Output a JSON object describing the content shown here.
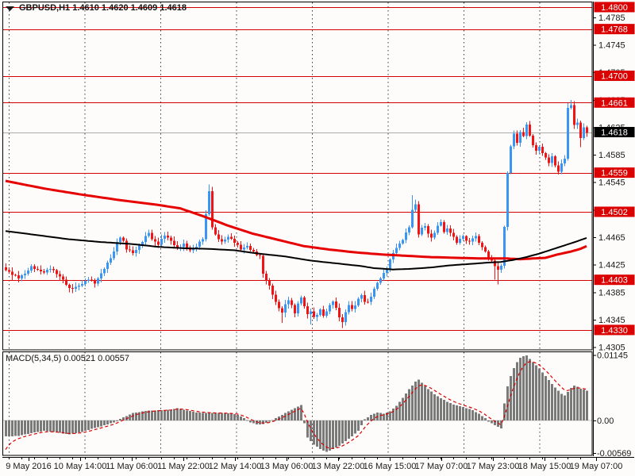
{
  "window": {
    "title": "GBPUSD,H1 1.4610 1.4620 1.4609 1.4618",
    "symbol": "GBPUSD",
    "period": "H1",
    "quote_open": "1.4610",
    "quote_high": "1.4620",
    "quote_low": "1.4609",
    "quote_close": "1.4618"
  },
  "colors": {
    "background": "#FEFCFA",
    "bull_candle": "#3996F5",
    "bear_candle": "#F21414",
    "ma_slow_red": "#E60000",
    "ma_fast_black": "#000000",
    "level_line": "#D40000",
    "level_badge_bg": "#DC0000",
    "level_badge_text": "#FFFFFF",
    "bid_line": "#ABABAB",
    "bid_badge_bg": "#000000",
    "bid_badge_text": "#FFFFFF",
    "macd_bar": "#7A7A7A",
    "macd_signal": "#DC0000",
    "macd_zero_line": "#C8C8C8",
    "grid": "#3A3A3A",
    "frame": "#000000",
    "axis_text": "#1A1A1A"
  },
  "chart_data": {
    "type": "candlestick+macd",
    "symbol": "GBPUSD",
    "timeframe": "H1",
    "main": {
      "ylim": [
        1.4301,
        1.4808
      ],
      "yticks": [
        "1.4785",
        "1.4745",
        "1.4705",
        "1.4665",
        "1.4625",
        "1.4585",
        "1.4545",
        "1.4505",
        "1.4465",
        "1.4425",
        "1.4385",
        "1.4345",
        "1.4305"
      ],
      "levels": [
        "1.4800",
        "1.4768",
        "1.4700",
        "1.4661",
        "1.4559",
        "1.4502",
        "1.4403",
        "1.4330"
      ],
      "bid": "1.4618",
      "xlabels": [
        "9 May 2016",
        "10 May 14:00",
        "11 May 06:00",
        "11 May 22:00",
        "12 May 14:00",
        "13 May 06:00",
        "13 May 22:00",
        "16 May 15:00",
        "17 May 07:00",
        "17 May 23:00",
        "18 May 15:00",
        "19 May 07:00"
      ],
      "candles": {
        "count": 184,
        "close_keypoints": [
          [
            0,
            1.4417
          ],
          [
            2,
            1.4411
          ],
          [
            4,
            1.4406
          ],
          [
            6,
            1.4412
          ],
          [
            8,
            1.4422
          ],
          [
            10,
            1.4417
          ],
          [
            12,
            1.4414
          ],
          [
            14,
            1.442
          ],
          [
            16,
            1.4412
          ],
          [
            18,
            1.4403
          ],
          [
            20,
            1.439
          ],
          [
            22,
            1.4392
          ],
          [
            24,
            1.4397
          ],
          [
            26,
            1.4404
          ],
          [
            28,
            1.4398
          ],
          [
            30,
            1.4412
          ],
          [
            32,
            1.4427
          ],
          [
            34,
            1.4444
          ],
          [
            35,
            1.4458
          ],
          [
            36,
            1.4465
          ],
          [
            37,
            1.4459
          ],
          [
            38,
            1.4448
          ],
          [
            40,
            1.4442
          ],
          [
            42,
            1.4452
          ],
          [
            44,
            1.4466
          ],
          [
            45,
            1.4472
          ],
          [
            46,
            1.4462
          ],
          [
            48,
            1.4455
          ],
          [
            50,
            1.4468
          ],
          [
            52,
            1.446
          ],
          [
            54,
            1.4448
          ],
          [
            56,
            1.4455
          ],
          [
            58,
            1.4446
          ],
          [
            60,
            1.4452
          ],
          [
            62,
            1.4463
          ],
          [
            63,
            1.4498
          ],
          [
            64,
            1.4532
          ],
          [
            65,
            1.448
          ],
          [
            66,
            1.4468
          ],
          [
            68,
            1.4458
          ],
          [
            70,
            1.4466
          ],
          [
            72,
            1.4458
          ],
          [
            74,
            1.4448
          ],
          [
            76,
            1.4452
          ],
          [
            78,
            1.4443
          ],
          [
            80,
            1.4437
          ],
          [
            81,
            1.4412
          ],
          [
            82,
            1.4402
          ],
          [
            83,
            1.4394
          ],
          [
            84,
            1.4382
          ],
          [
            85,
            1.437
          ],
          [
            86,
            1.4362
          ],
          [
            87,
            1.4355
          ],
          [
            88,
            1.4367
          ],
          [
            89,
            1.4374
          ],
          [
            90,
            1.4365
          ],
          [
            91,
            1.4355
          ],
          [
            92,
            1.4368
          ],
          [
            93,
            1.4377
          ],
          [
            94,
            1.4365
          ],
          [
            95,
            1.4352
          ],
          [
            96,
            1.4358
          ],
          [
            97,
            1.4348
          ],
          [
            98,
            1.4352
          ],
          [
            99,
            1.436
          ],
          [
            100,
            1.435
          ],
          [
            101,
            1.4358
          ],
          [
            102,
            1.4365
          ],
          [
            103,
            1.4372
          ],
          [
            104,
            1.4362
          ],
          [
            105,
            1.4348
          ],
          [
            106,
            1.4342
          ],
          [
            107,
            1.4355
          ],
          [
            108,
            1.4367
          ],
          [
            109,
            1.436
          ],
          [
            110,
            1.4366
          ],
          [
            111,
            1.4376
          ],
          [
            112,
            1.438
          ],
          [
            113,
            1.4372
          ],
          [
            114,
            1.437
          ],
          [
            115,
            1.4379
          ],
          [
            116,
            1.439
          ],
          [
            117,
            1.4398
          ],
          [
            118,
            1.4406
          ],
          [
            119,
            1.4412
          ],
          [
            120,
            1.442
          ],
          [
            121,
            1.4432
          ],
          [
            122,
            1.4442
          ],
          [
            123,
            1.445
          ],
          [
            124,
            1.4455
          ],
          [
            125,
            1.4462
          ],
          [
            126,
            1.4471
          ],
          [
            127,
            1.448
          ],
          [
            128,
            1.4505
          ],
          [
            129,
            1.4512
          ],
          [
            130,
            1.447
          ],
          [
            131,
            1.4478
          ],
          [
            132,
            1.4482
          ],
          [
            133,
            1.447
          ],
          [
            134,
            1.4464
          ],
          [
            135,
            1.4472
          ],
          [
            136,
            1.4481
          ],
          [
            137,
            1.4488
          ],
          [
            138,
            1.4472
          ],
          [
            139,
            1.4478
          ],
          [
            140,
            1.4472
          ],
          [
            141,
            1.4465
          ],
          [
            142,
            1.4458
          ],
          [
            143,
            1.4462
          ],
          [
            144,
            1.4467
          ],
          [
            145,
            1.446
          ],
          [
            146,
            1.4458
          ],
          [
            147,
            1.4464
          ],
          [
            148,
            1.4466
          ],
          [
            149,
            1.4458
          ],
          [
            150,
            1.445
          ],
          [
            151,
            1.4444
          ],
          [
            152,
            1.4436
          ],
          [
            153,
            1.443
          ],
          [
            154,
            1.4424
          ],
          [
            155,
            1.4417
          ],
          [
            156,
            1.4424
          ],
          [
            157,
            1.448
          ],
          [
            158,
            1.4558
          ],
          [
            159,
            1.4598
          ],
          [
            160,
            1.4615
          ],
          [
            161,
            1.4603
          ],
          [
            162,
            1.4618
          ],
          [
            163,
            1.4612
          ],
          [
            164,
            1.463
          ],
          [
            165,
            1.4612
          ],
          [
            166,
            1.46
          ],
          [
            167,
            1.459
          ],
          [
            168,
            1.4597
          ],
          [
            169,
            1.4588
          ],
          [
            170,
            1.458
          ],
          [
            171,
            1.4574
          ],
          [
            172,
            1.4582
          ],
          [
            173,
            1.457
          ],
          [
            174,
            1.456
          ],
          [
            175,
            1.4572
          ],
          [
            176,
            1.458
          ],
          [
            177,
            1.4652
          ],
          [
            178,
            1.4658
          ],
          [
            179,
            1.4628
          ],
          [
            180,
            1.4632
          ],
          [
            181,
            1.461
          ],
          [
            182,
            1.4624
          ],
          [
            183,
            1.4618
          ]
        ],
        "wick_overrides": {
          "2": {
            "low": 1.4402
          },
          "18": {
            "low": 1.4398
          },
          "20": {
            "low": 1.4385
          },
          "64": {
            "high": 1.4542
          },
          "87": {
            "low": 1.434
          },
          "96": {
            "low": 1.4338
          },
          "106": {
            "low": 1.4333
          },
          "128": {
            "high": 1.4526
          },
          "129": {
            "high": 1.452
          },
          "154": {
            "low": 1.4403
          },
          "155": {
            "low": 1.4396
          },
          "177": {
            "high": 1.466
          },
          "178": {
            "high": 1.4665
          },
          "181": {
            "low": 1.4596
          }
        }
      },
      "ma_fast_black": [
        [
          0,
          1.4474
        ],
        [
          10,
          1.4468
        ],
        [
          20,
          1.4462
        ],
        [
          30,
          1.4458
        ],
        [
          40,
          1.4455
        ],
        [
          48,
          1.4451
        ],
        [
          56,
          1.4449
        ],
        [
          64,
          1.4448
        ],
        [
          72,
          1.4446
        ],
        [
          80,
          1.4441
        ],
        [
          88,
          1.4437
        ],
        [
          96,
          1.4431
        ],
        [
          104,
          1.4427
        ],
        [
          112,
          1.4423
        ],
        [
          116,
          1.442
        ],
        [
          122,
          1.4418
        ],
        [
          128,
          1.4419
        ],
        [
          134,
          1.4421
        ],
        [
          140,
          1.4424
        ],
        [
          146,
          1.4426
        ],
        [
          152,
          1.4428
        ],
        [
          156,
          1.4429
        ],
        [
          160,
          1.4432
        ],
        [
          164,
          1.4436
        ],
        [
          168,
          1.4441
        ],
        [
          172,
          1.4447
        ],
        [
          176,
          1.4453
        ],
        [
          180,
          1.4459
        ],
        [
          183,
          1.4464
        ]
      ],
      "ma_slow_red": [
        [
          0,
          1.4547
        ],
        [
          12,
          1.4536
        ],
        [
          24,
          1.4527
        ],
        [
          36,
          1.4519
        ],
        [
          48,
          1.4512
        ],
        [
          55,
          1.4507
        ],
        [
          62,
          1.4496
        ],
        [
          70,
          1.4482
        ],
        [
          78,
          1.447
        ],
        [
          86,
          1.4461
        ],
        [
          94,
          1.4452
        ],
        [
          102,
          1.4447
        ],
        [
          110,
          1.4443
        ],
        [
          118,
          1.444
        ],
        [
          126,
          1.4438
        ],
        [
          134,
          1.4436
        ],
        [
          142,
          1.4435
        ],
        [
          150,
          1.4434
        ],
        [
          158,
          1.4434
        ],
        [
          162,
          1.4433
        ],
        [
          166,
          1.4434
        ],
        [
          170,
          1.4435
        ],
        [
          174,
          1.444
        ],
        [
          178,
          1.4444
        ],
        [
          181,
          1.4448
        ],
        [
          183,
          1.4452
        ]
      ]
    },
    "macd": {
      "label": "MACD(5,34,5) 0.00521 0.00557",
      "macd_value": "0.00521",
      "signal_value": "0.00557",
      "ylim": [
        -0.0061,
        0.0121
      ],
      "yticks": [
        "0.01145",
        "0.00",
        "-0.00569"
      ],
      "keypoints": [
        [
          0,
          -0.0028
        ],
        [
          4,
          -0.0027
        ],
        [
          8,
          -0.0022
        ],
        [
          12,
          -0.0018
        ],
        [
          16,
          -0.0021
        ],
        [
          20,
          -0.0024
        ],
        [
          24,
          -0.002
        ],
        [
          28,
          -0.0013
        ],
        [
          32,
          -0.0007
        ],
        [
          34,
          -0.0003
        ],
        [
          36,
          0.0003
        ],
        [
          38,
          0.0008
        ],
        [
          40,
          0.0013
        ],
        [
          44,
          0.0017
        ],
        [
          48,
          0.0018
        ],
        [
          52,
          0.0019
        ],
        [
          54,
          0.0022
        ],
        [
          56,
          0.0019
        ],
        [
          60,
          0.0014
        ],
        [
          64,
          0.0013
        ],
        [
          68,
          0.0013
        ],
        [
          71,
          0.0012
        ],
        [
          73,
          0.001
        ],
        [
          75,
          0.0004
        ],
        [
          77,
          -0.0003
        ],
        [
          79,
          -0.0007
        ],
        [
          81,
          -0.0006
        ],
        [
          83,
          -0.0002
        ],
        [
          85,
          0.0004
        ],
        [
          87,
          0.001
        ],
        [
          89,
          0.0016
        ],
        [
          91,
          0.0022
        ],
        [
          93,
          0.0027
        ],
        [
          94,
          -0.0005
        ],
        [
          95,
          -0.003
        ],
        [
          97,
          -0.0042
        ],
        [
          99,
          -0.005
        ],
        [
          101,
          -0.0055
        ],
        [
          103,
          -0.005
        ],
        [
          105,
          -0.0044
        ],
        [
          107,
          -0.0036
        ],
        [
          109,
          -0.0028
        ],
        [
          111,
          -0.0018
        ],
        [
          112,
          -0.0008
        ],
        [
          113,
          0.0002
        ],
        [
          115,
          0.001
        ],
        [
          117,
          0.0014
        ],
        [
          119,
          0.0012
        ],
        [
          121,
          0.0016
        ],
        [
          123,
          0.0026
        ],
        [
          125,
          0.004
        ],
        [
          127,
          0.0055
        ],
        [
          129,
          0.0068
        ],
        [
          130,
          0.0072
        ],
        [
          131,
          0.0066
        ],
        [
          133,
          0.0055
        ],
        [
          135,
          0.0046
        ],
        [
          137,
          0.0039
        ],
        [
          139,
          0.0033
        ],
        [
          141,
          0.0028
        ],
        [
          143,
          0.0025
        ],
        [
          145,
          0.0022
        ],
        [
          147,
          0.0018
        ],
        [
          149,
          0.0012
        ],
        [
          151,
          0.0004
        ],
        [
          152,
          -0.0002
        ],
        [
          154,
          -0.0008
        ],
        [
          156,
          -0.0014
        ],
        [
          157,
          0.003
        ],
        [
          158,
          0.006
        ],
        [
          159,
          0.0078
        ],
        [
          160,
          0.0092
        ],
        [
          161,
          0.0102
        ],
        [
          162,
          0.011
        ],
        [
          163,
          0.0113
        ],
        [
          164,
          0.0114
        ],
        [
          165,
          0.0108
        ],
        [
          166,
          0.0102
        ],
        [
          168,
          0.0091
        ],
        [
          170,
          0.0078
        ],
        [
          172,
          0.0064
        ],
        [
          174,
          0.0052
        ],
        [
          175,
          0.0047
        ],
        [
          176,
          0.0044
        ],
        [
          177,
          0.005
        ],
        [
          178,
          0.0057
        ],
        [
          179,
          0.0061
        ],
        [
          180,
          0.0059
        ],
        [
          181,
          0.0056
        ],
        [
          182,
          0.0054
        ],
        [
          183,
          0.0052
        ]
      ]
    }
  }
}
